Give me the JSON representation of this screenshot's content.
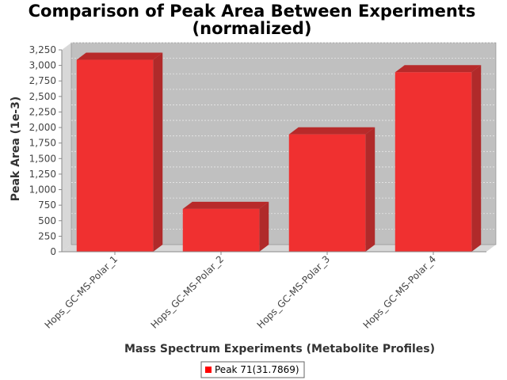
{
  "chart_data": {
    "type": "bar",
    "title_lines": [
      "Comparison of Peak Area Between Experiments",
      "(normalized)"
    ],
    "xlabel": "Mass Spectrum Experiments (Metabolite Profiles)",
    "ylabel": "Peak Area (1e-3)",
    "categories": [
      "Hops_GC-MS-Polar_1",
      "Hops_GC-MS-Polar_2",
      "Hops_GC-MS-Polar_3",
      "Hops_GC-MS-Polar_4"
    ],
    "series": [
      {
        "name": "Peak 71(31.7869)",
        "values": [
          3090,
          690,
          1890,
          2890
        ]
      }
    ],
    "ylim": [
      0,
      3250
    ],
    "yticks": [
      0,
      250,
      500,
      750,
      1000,
      1250,
      1500,
      1750,
      2000,
      2250,
      2500,
      2750,
      3000,
      3250
    ],
    "ytick_labels": [
      "0",
      "250",
      "500",
      "750",
      "1,000",
      "1,250",
      "1,500",
      "1,750",
      "2,000",
      "2,250",
      "2,500",
      "2,750",
      "3,000",
      "3,250"
    ],
    "grid": true,
    "legend_position": "bottom",
    "colors": {
      "bar_front": "#f03030",
      "bar_top": "#b82a2a",
      "bar_side": "#b02a2a",
      "plot_bg": "#c0c0c0",
      "wall": "#d8d8d8",
      "grid": "#e8e8e8",
      "legend_marker": "#ff0000"
    }
  }
}
